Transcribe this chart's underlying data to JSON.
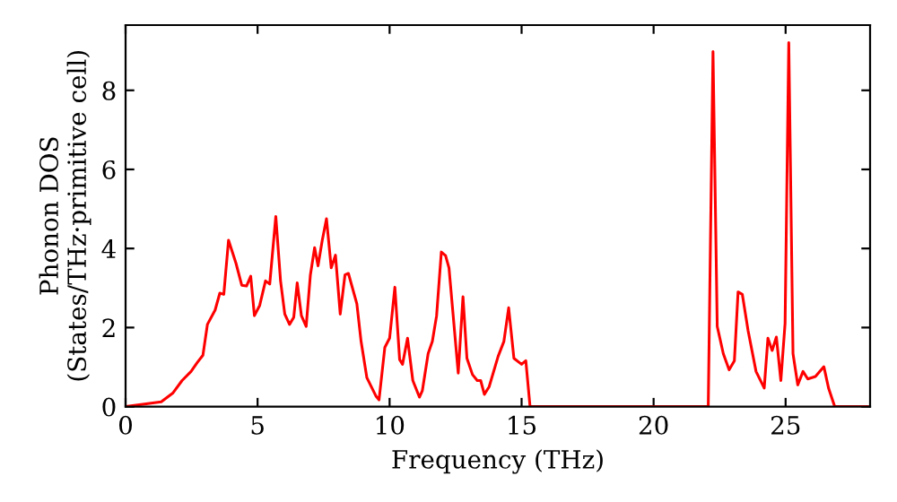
{
  "chart_data": {
    "type": "line",
    "xlabel": "Frequency (THz)",
    "ylabel": "Phonon DOS\n(States/THz·primitive cell)",
    "xlim": [
      0,
      28.2
    ],
    "ylim": [
      0,
      9.65
    ],
    "xticks": [
      0,
      5,
      10,
      15,
      20,
      25
    ],
    "yticks": [
      0,
      2,
      4,
      6,
      8
    ],
    "grid": false,
    "legend": false,
    "marker": "none",
    "line_style": "solid",
    "series": [
      {
        "color": "#ff0000",
        "x": [
          0,
          1.35,
          1.8,
          2.14,
          2.48,
          2.71,
          2.93,
          3.1,
          3.39,
          3.57,
          3.72,
          3.9,
          4.18,
          4.4,
          4.58,
          4.74,
          4.88,
          5.08,
          5.3,
          5.46,
          5.69,
          5.87,
          6.03,
          6.21,
          6.37,
          6.5,
          6.66,
          6.84,
          7.0,
          7.16,
          7.29,
          7.45,
          7.61,
          7.79,
          7.95,
          8.13,
          8.31,
          8.44,
          8.76,
          8.92,
          9.14,
          9.48,
          9.6,
          9.82,
          10.0,
          10.2,
          10.38,
          10.49,
          10.68,
          10.88,
          11.13,
          11.24,
          11.46,
          11.62,
          11.78,
          11.96,
          12.12,
          12.25,
          12.6,
          12.78,
          12.93,
          13.14,
          13.32,
          13.45,
          13.59,
          13.77,
          14.11,
          14.33,
          14.51,
          14.71,
          15.0,
          15.16,
          15.32,
          22.07,
          22.25,
          22.41,
          22.64,
          22.86,
          23.06,
          23.2,
          23.36,
          23.58,
          23.88,
          24.19,
          24.33,
          24.49,
          24.65,
          24.82,
          24.98,
          25.12,
          25.28,
          25.46,
          25.66,
          25.84,
          26.13,
          26.45,
          26.63,
          26.86,
          28.1
        ],
        "values": [
          0,
          0.12,
          0.35,
          0.66,
          0.89,
          1.11,
          1.3,
          2.08,
          2.44,
          2.87,
          2.84,
          4.21,
          3.63,
          3.07,
          3.05,
          3.3,
          2.3,
          2.56,
          3.18,
          3.1,
          4.81,
          3.18,
          2.34,
          2.08,
          2.26,
          3.13,
          2.3,
          2.03,
          3.33,
          4.02,
          3.56,
          4.21,
          4.75,
          3.51,
          3.83,
          2.34,
          3.33,
          3.37,
          2.6,
          1.65,
          0.73,
          0.27,
          0.17,
          1.5,
          1.73,
          3.02,
          1.19,
          1.07,
          1.73,
          0.66,
          0.24,
          0.4,
          1.34,
          1.65,
          2.3,
          3.91,
          3.82,
          3.51,
          0.85,
          2.78,
          1.22,
          0.81,
          0.66,
          0.66,
          0.31,
          0.5,
          1.27,
          1.65,
          2.5,
          1.22,
          1.07,
          1.16,
          0,
          0,
          8.98,
          2.03,
          1.34,
          0.93,
          1.16,
          2.9,
          2.84,
          1.92,
          0.89,
          0.47,
          1.73,
          1.42,
          1.76,
          0.66,
          2.11,
          9.21,
          1.34,
          0.55,
          0.89,
          0.7,
          0.76,
          1.01,
          0.46,
          0,
          0
        ]
      }
    ]
  }
}
